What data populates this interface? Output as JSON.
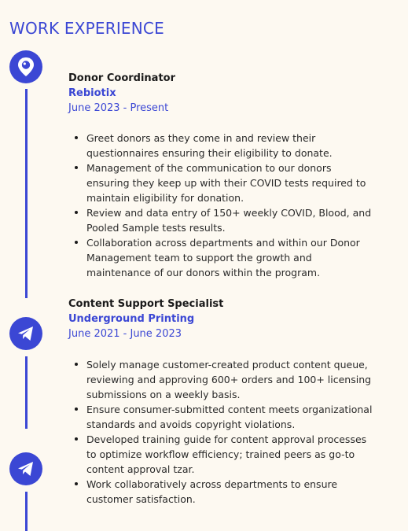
{
  "section": {
    "title": "WORK EXPERIENCE"
  },
  "jobs": [
    {
      "title": "Donor Coordinator",
      "company": "Rebiotix",
      "dates": "June 2023 - Present",
      "bullets": [
        "Greet donors as they come in and review their questionnaires ensuring their eligibility to donate.",
        "Management of the communication to our donors ensuring they keep up with their COVID tests required to maintain eligibility for donation.",
        "Review and data entry of 150+ weekly COVID, Blood, and Pooled Sample tests results.",
        "Collaboration across departments and within our Donor Management team to support the growth and maintenance of our donors within the program."
      ]
    },
    {
      "title": "Content Support Specialist",
      "company": "Underground Printing",
      "dates": "June 2021 - June 2023",
      "bullets": [
        "Solely manage customer-created product content queue, reviewing and approving 600+ orders and 100+ licensing submissions on a weekly basis.",
        "Ensure consumer-submitted content meets organizational standards and avoids copyright violations.",
        "Developed training guide for content approval processes to optimize workflow efficiency; trained peers as go-to content approval tzar.",
        "Work collaboratively across departments to ensure customer satisfaction."
      ]
    }
  ],
  "icons": [
    "periscope-icon",
    "telegram-icon",
    "telegram-icon"
  ],
  "colors": {
    "accent": "#3b47d4",
    "background": "#fdf9f1"
  }
}
